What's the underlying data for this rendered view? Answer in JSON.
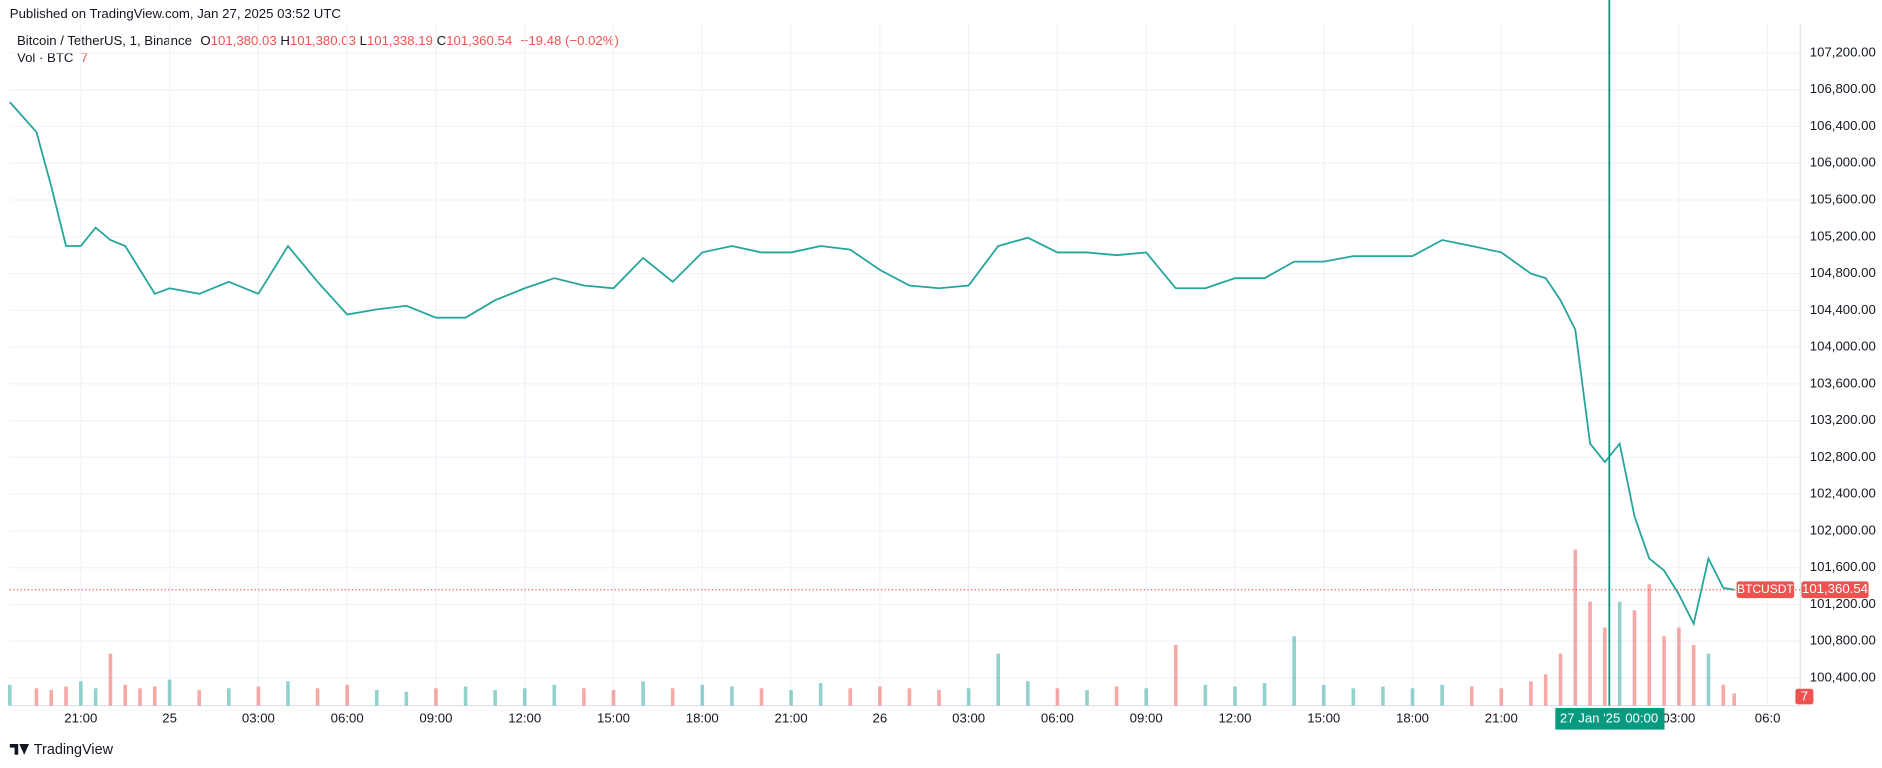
{
  "header": "Published on TradingView.com, Jan 27, 2025 03:52 UTC",
  "footer": "TradingView",
  "legend": {
    "symbol": "Bitcoin / TetherUS, 1, Binance",
    "open_label": "O",
    "open": "101,380.03",
    "high_label": "H",
    "high": "101,380.03",
    "low_label": "L",
    "low": "101,338.19",
    "close_label": "C",
    "close": "101,360.54",
    "change": "−19.48 (−0.02%)",
    "volume_title": "Vol · BTC",
    "volume_value": "7"
  },
  "chart_data": {
    "type": "line",
    "x": [
      -5.4,
      -4.5,
      -4,
      -3.5,
      -3,
      -2.5,
      -2,
      -1.5,
      -1,
      -0.5,
      0,
      1,
      2,
      3,
      4,
      5,
      6,
      7,
      8,
      9,
      10,
      11,
      12,
      13,
      14,
      15,
      16,
      17,
      18,
      19,
      20,
      21,
      22,
      23,
      24,
      25,
      26,
      27,
      28,
      29,
      30,
      31,
      32,
      33,
      34,
      35,
      36,
      37,
      38,
      39,
      40,
      41,
      42,
      43,
      44,
      45,
      46,
      46.5,
      47,
      47.5,
      48,
      48.5,
      49,
      49.5,
      50,
      50.5,
      51,
      51.5,
      52,
      52.5,
      52.87
    ],
    "series": [
      {
        "name": "BTCUSDT",
        "color": "#26a69a",
        "values": [
          106665,
          106340,
          105750,
          105100,
          105100,
          105300,
          105165,
          105100,
          104840,
          104580,
          104640,
          104580,
          104710,
          104580,
          105100,
          104710,
          104355,
          104410,
          104450,
          104320,
          104320,
          104510,
          104640,
          104750,
          104670,
          104640,
          104970,
          104710,
          105030,
          105100,
          105030,
          105030,
          105100,
          105060,
          104840,
          104670,
          104640,
          104670,
          105100,
          105190,
          105030,
          105030,
          105000,
          105030,
          104640,
          104640,
          104750,
          104750,
          104930,
          104930,
          104990,
          104990,
          104990,
          105165,
          105100,
          105030,
          104800,
          104750,
          104510,
          104190,
          102950,
          102750,
          102950,
          102160,
          101700,
          101570,
          101310,
          100990,
          101700,
          101380,
          101360.54
        ],
        "value_labels_last": "101,360.54",
        "last_label": "BTCUSDT"
      },
      {
        "name": "Vol · BTC",
        "color": "#ef5350",
        "axis": "volume",
        "values": [
          12,
          10,
          9,
          11,
          14,
          10,
          30,
          12,
          10,
          11,
          15,
          9,
          10,
          11,
          14,
          10,
          12,
          9,
          8,
          10,
          11,
          9,
          10,
          12,
          10,
          9,
          14,
          10,
          12,
          11,
          10,
          9,
          13,
          10,
          11,
          10,
          9,
          10,
          30,
          14,
          10,
          9,
          11,
          10,
          35,
          12,
          11,
          13,
          40,
          12,
          10,
          11,
          10,
          12,
          11,
          10,
          14,
          18,
          30,
          90,
          60,
          45,
          60,
          55,
          70,
          40,
          45,
          35,
          30,
          12,
          7
        ]
      }
    ],
    "ylim": [
      100100,
      107515
    ],
    "yticks": [
      {
        "value": 100400,
        "label": "100,400.00"
      },
      {
        "value": 100800,
        "label": "100,800.00"
      },
      {
        "value": 101200,
        "label": "101,200.00"
      },
      {
        "value": 101600,
        "label": "101,600.00"
      },
      {
        "value": 102000,
        "label": "102,000.00"
      },
      {
        "value": 102400,
        "label": "102,400.00"
      },
      {
        "value": 102800,
        "label": "102,800.00"
      },
      {
        "value": 103200,
        "label": "103,200.00"
      },
      {
        "value": 103600,
        "label": "103,600.00"
      },
      {
        "value": 104000,
        "label": "104,000.00"
      },
      {
        "value": 104400,
        "label": "104,400.00"
      },
      {
        "value": 104800,
        "label": "104,800.00"
      },
      {
        "value": 105200,
        "label": "105,200.00"
      },
      {
        "value": 105600,
        "label": "105,600.00"
      },
      {
        "value": 106000,
        "label": "106,000.00"
      },
      {
        "value": 106400,
        "label": "106,400.00"
      },
      {
        "value": 106800,
        "label": "106,800.00"
      },
      {
        "value": 107200,
        "label": "107,200.00"
      }
    ],
    "xlim": [
      -5.4,
      55.1
    ],
    "xticks": [
      {
        "value": -3,
        "label": "21:00"
      },
      {
        "value": 0,
        "label": "25"
      },
      {
        "value": 3,
        "label": "03:00"
      },
      {
        "value": 6,
        "label": "06:00"
      },
      {
        "value": 9,
        "label": "09:00"
      },
      {
        "value": 12,
        "label": "12:00"
      },
      {
        "value": 15,
        "label": "15:00"
      },
      {
        "value": 18,
        "label": "18:00"
      },
      {
        "value": 21,
        "label": "21:00"
      },
      {
        "value": 24,
        "label": "26"
      },
      {
        "value": 27,
        "label": "03:00"
      },
      {
        "value": 30,
        "label": "06:00"
      },
      {
        "value": 33,
        "label": "09:00"
      },
      {
        "value": 36,
        "label": "12:00"
      },
      {
        "value": 39,
        "label": "15:00"
      },
      {
        "value": 42,
        "label": "18:00"
      },
      {
        "value": 45,
        "label": "21:00"
      },
      {
        "value": 51,
        "label": "03:00"
      },
      {
        "value": 54,
        "label": "06:0"
      }
    ],
    "marker": {
      "x": 48.65,
      "date": "27 Jan '25",
      "time": "00:00",
      "color": "#089981"
    },
    "grid": true
  }
}
